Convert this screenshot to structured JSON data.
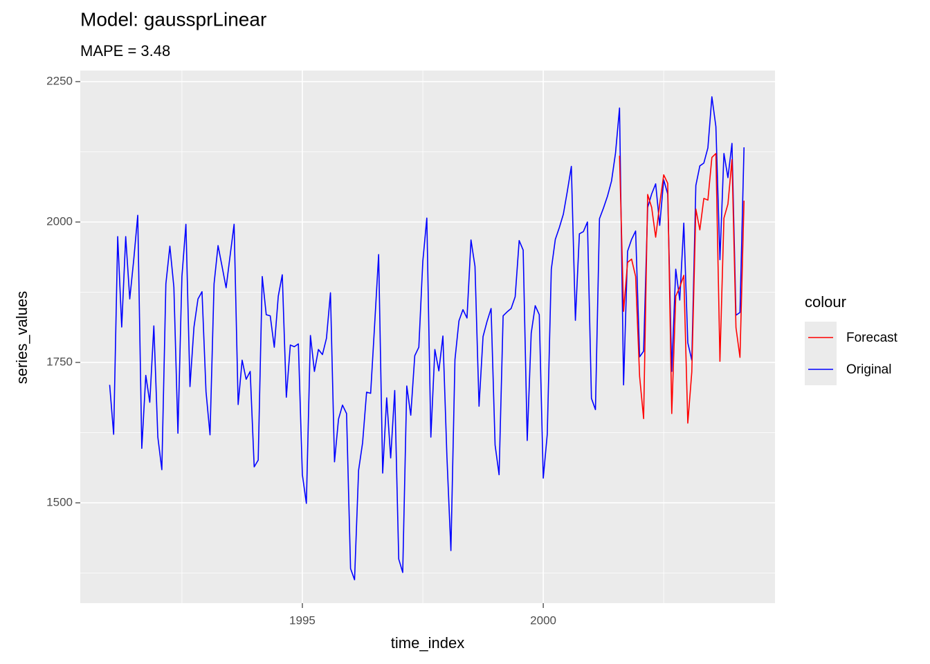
{
  "chart_data": {
    "type": "line",
    "title": "Model:  gaussprLinear",
    "subtitle": "MAPE = 3.48",
    "x_label": "time_index",
    "y_label": "series_values",
    "legend_title": "colour",
    "legend_position": "right",
    "grid": true,
    "x": [
      1991,
      1991.083,
      1991.167,
      1991.25,
      1991.333,
      1991.417,
      1991.5,
      1991.583,
      1991.667,
      1991.75,
      1991.833,
      1991.917,
      1992,
      1992.083,
      1992.167,
      1992.25,
      1992.333,
      1992.417,
      1992.5,
      1992.583,
      1992.667,
      1992.75,
      1992.833,
      1992.917,
      1993,
      1993.083,
      1993.167,
      1993.25,
      1993.333,
      1993.417,
      1993.5,
      1993.583,
      1993.667,
      1993.75,
      1993.833,
      1993.917,
      1994,
      1994.083,
      1994.167,
      1994.25,
      1994.333,
      1994.417,
      1994.5,
      1994.583,
      1994.667,
      1994.75,
      1994.833,
      1994.917,
      1995,
      1995.083,
      1995.167,
      1995.25,
      1995.333,
      1995.417,
      1995.5,
      1995.583,
      1995.667,
      1995.75,
      1995.833,
      1995.917,
      1996,
      1996.083,
      1996.167,
      1996.25,
      1996.333,
      1996.417,
      1996.5,
      1996.583,
      1996.667,
      1996.75,
      1996.833,
      1996.917,
      1997,
      1997.083,
      1997.167,
      1997.25,
      1997.333,
      1997.417,
      1997.5,
      1997.583,
      1997.667,
      1997.75,
      1997.833,
      1997.917,
      1998,
      1998.083,
      1998.167,
      1998.25,
      1998.333,
      1998.417,
      1998.5,
      1998.583,
      1998.667,
      1998.75,
      1998.833,
      1998.917,
      1999,
      1999.083,
      1999.167,
      1999.25,
      1999.333,
      1999.417,
      1999.5,
      1999.583,
      1999.667,
      1999.75,
      1999.833,
      1999.917,
      2000,
      2000.083,
      2000.167,
      2000.25,
      2000.333,
      2000.417,
      2000.5,
      2000.583,
      2000.667,
      2000.75,
      2000.833,
      2000.917,
      2001,
      2001.083,
      2001.167,
      2001.25,
      2001.333,
      2001.417,
      2001.5,
      2001.583,
      2001.667,
      2001.75,
      2001.833,
      2001.917,
      2002,
      2002.083,
      2002.167,
      2002.25,
      2002.333,
      2002.417,
      2002.5,
      2002.583,
      2002.667,
      2002.75,
      2002.833,
      2002.917,
      2003,
      2003.083,
      2003.167,
      2003.25,
      2003.333,
      2003.417,
      2003.5,
      2003.583,
      2003.667,
      2003.75,
      2003.833,
      2003.917,
      2004,
      2004.083,
      2004.167
    ],
    "series": [
      {
        "name": "Forecast",
        "color": "#ff0000",
        "values": [
          null,
          null,
          null,
          null,
          null,
          null,
          null,
          null,
          null,
          null,
          null,
          null,
          null,
          null,
          null,
          null,
          null,
          null,
          null,
          null,
          null,
          null,
          null,
          null,
          null,
          null,
          null,
          null,
          null,
          null,
          null,
          null,
          null,
          null,
          null,
          null,
          null,
          null,
          null,
          null,
          null,
          null,
          null,
          null,
          null,
          null,
          null,
          null,
          null,
          null,
          null,
          null,
          null,
          null,
          null,
          null,
          null,
          null,
          null,
          null,
          null,
          null,
          null,
          null,
          null,
          null,
          null,
          null,
          null,
          null,
          null,
          null,
          null,
          null,
          null,
          null,
          null,
          null,
          null,
          null,
          null,
          null,
          null,
          null,
          null,
          null,
          null,
          null,
          null,
          null,
          null,
          null,
          null,
          null,
          null,
          null,
          null,
          null,
          null,
          null,
          null,
          null,
          null,
          null,
          null,
          null,
          null,
          null,
          null,
          null,
          null,
          null,
          null,
          null,
          null,
          null,
          null,
          null,
          null,
          null,
          null,
          null,
          null,
          null,
          null,
          null,
          null,
          2118,
          1841,
          1928,
          1934,
          1903,
          1725,
          1650,
          2049,
          2026,
          1973,
          2032,
          2084,
          2069,
          1659,
          1868,
          1884,
          1905,
          1642,
          1733,
          2023,
          1986,
          2042,
          2039,
          2115,
          2122,
          1752,
          2007,
          2032,
          2111,
          1812,
          1759,
          2038
        ]
      },
      {
        "name": "Original",
        "color": "#0000ff",
        "values": [
          1710,
          1622,
          1974,
          1813,
          1974,
          1863,
          1933,
          2012,
          1597,
          1727,
          1679,
          1815,
          1617,
          1559,
          1890,
          1957,
          1884,
          1624,
          1903,
          1996,
          1707,
          1813,
          1863,
          1876,
          1698,
          1621,
          1890,
          1958,
          1921,
          1883,
          1940,
          1996,
          1675,
          1754,
          1720,
          1734,
          1564,
          1576,
          1903,
          1835,
          1833,
          1777,
          1868,
          1906,
          1688,
          1781,
          1778,
          1783,
          1550,
          1499,
          1798,
          1734,
          1773,
          1764,
          1793,
          1874,
          1573,
          1649,
          1674,
          1659,
          1383,
          1363,
          1558,
          1607,
          1697,
          1695,
          1817,
          1942,
          1553,
          1687,
          1580,
          1700,
          1400,
          1376,
          1708,
          1656,
          1762,
          1777,
          1930,
          2007,
          1617,
          1773,
          1735,
          1797,
          1583,
          1415,
          1755,
          1824,
          1844,
          1829,
          1968,
          1921,
          1672,
          1796,
          1823,
          1846,
          1603,
          1550,
          1833,
          1840,
          1846,
          1867,
          1967,
          1950,
          1611,
          1802,
          1851,
          1835,
          1544,
          1622,
          1916,
          1969,
          1990,
          2014,
          2055,
          2099,
          1825,
          1979,
          1983,
          2000,
          1686,
          1666,
          2006,
          2025,
          2046,
          2073,
          2123,
          2203,
          1710,
          1948,
          1969,
          1984,
          1760,
          1770,
          2026,
          2050,
          2068,
          1994,
          2075,
          2050,
          1734,
          1916,
          1861,
          1998,
          1785,
          1754,
          2065,
          2100,
          2105,
          2132,
          2223,
          2170,
          1933,
          2122,
          2079,
          2140,
          1834,
          1839,
          2133
        ]
      }
    ],
    "xlim": [
      1990.39,
      2004.81
    ],
    "ylim": [
      1321.4,
      2269.7
    ],
    "xticks": [
      1995,
      2000
    ],
    "yticks": [
      1500,
      1750,
      2000,
      2250
    ],
    "x_minor_grid": [
      1992.5,
      1997.5,
      2002.5
    ],
    "y_minor_grid": [
      1375,
      1625,
      1875,
      2125
    ]
  }
}
